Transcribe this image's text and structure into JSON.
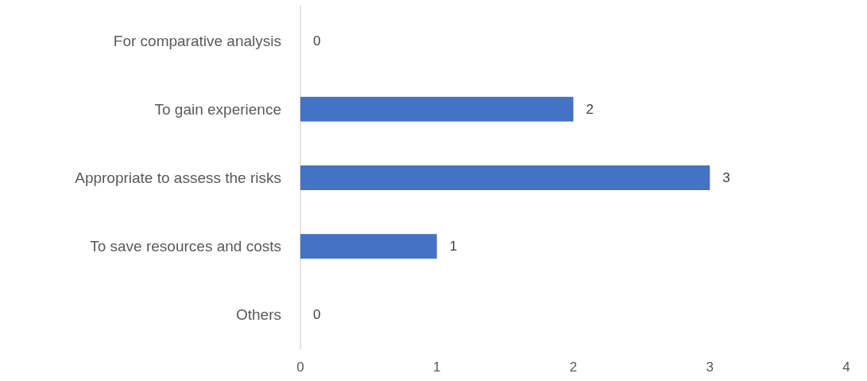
{
  "chart_data": {
    "type": "bar",
    "orientation": "horizontal",
    "categories": [
      "For comparative analysis",
      "To gain experience",
      "Appropriate to assess the risks",
      "To save resources and costs",
      "Others"
    ],
    "values": [
      0,
      2,
      3,
      1,
      0
    ],
    "color": "#4472c4",
    "xlim": [
      0,
      4
    ],
    "xticks": [
      0,
      1,
      2,
      3,
      4
    ],
    "grid": false,
    "data_labels": true
  }
}
